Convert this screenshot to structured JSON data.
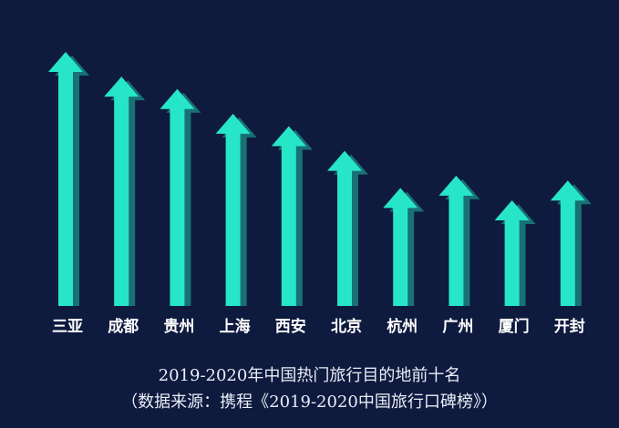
{
  "chart_data": {
    "type": "bar",
    "style": "upward arrows",
    "title": "2019-2020年中国热门旅行目的地前十名",
    "subtitle": "（数据来源：携程《2019-2020中国旅行口碑榜》）",
    "categories": [
      "三亚",
      "成都",
      "贵州",
      "上海",
      "西安",
      "北京",
      "杭州",
      "广州",
      "厦门",
      "开封"
    ],
    "values": [
      10,
      9,
      8.5,
      7.5,
      7,
      6,
      4.5,
      5,
      4,
      4.8
    ],
    "ylim": [
      0,
      10
    ],
    "grid": false,
    "legend": "none",
    "colors": {
      "background": "#0f1a3f",
      "arrow": "#27e6c8",
      "arrow_shadow": "#1c8f87",
      "label": "#ffffff",
      "caption": "#e9edf5"
    }
  }
}
